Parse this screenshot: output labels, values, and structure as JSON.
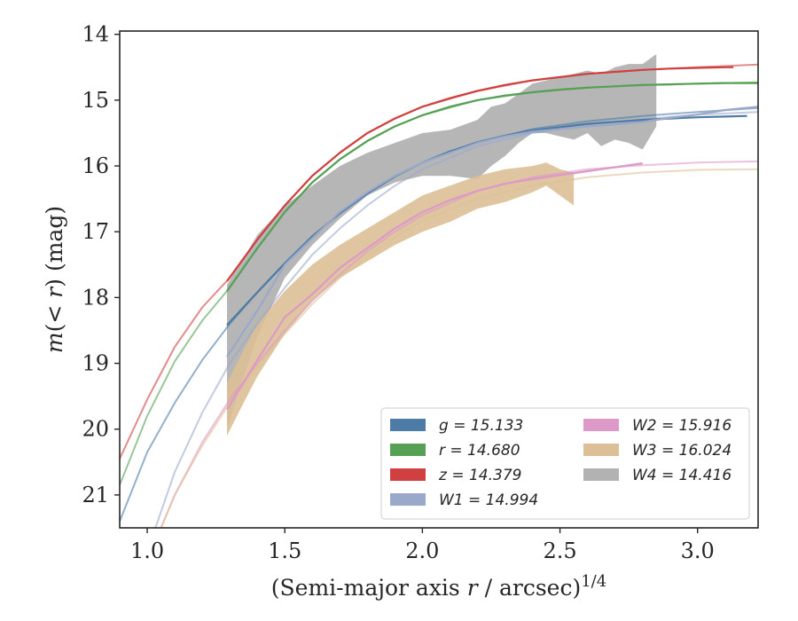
{
  "chart_data": {
    "type": "area",
    "xlabel": "(Semi-major axis r / arcsec)^1/4",
    "xlabel_parts": {
      "prefix": "(Semi-major axis ",
      "var": "r",
      "middle": " / arcsec)",
      "sup": "1/4"
    },
    "ylabel": "m(<r) (mag)",
    "ylabel_parts": {
      "var1": "m",
      "open": "(",
      "lt": "< ",
      "var2": "r",
      "close": ") (mag)"
    },
    "xlim": [
      0.9,
      3.22
    ],
    "ylim": [
      21.5,
      13.95
    ],
    "y_inverted": true,
    "x_ticks": [
      1.0,
      1.5,
      2.0,
      2.5,
      3.0
    ],
    "x_tick_labels": [
      "1.0",
      "1.5",
      "2.0",
      "2.5",
      "3.0"
    ],
    "y_ticks": [
      14,
      15,
      16,
      17,
      18,
      19,
      20,
      21
    ],
    "y_tick_labels": [
      "14",
      "15",
      "16",
      "17",
      "18",
      "19",
      "20",
      "21"
    ],
    "grid": false,
    "legend_position": "lower-right",
    "legend_columns": 2,
    "series": [
      {
        "name": "g",
        "label": "g = 15.133",
        "color": "#4c7ba6",
        "data": {
          "x": [
            1.29,
            1.4,
            1.5,
            1.6,
            1.7,
            1.8,
            1.9,
            2.0,
            2.1,
            2.2,
            2.3,
            2.4,
            2.5,
            2.6,
            2.7,
            2.8,
            2.9,
            3.0,
            3.1,
            3.18
          ],
          "y": [
            18.42,
            17.92,
            17.48,
            17.07,
            16.72,
            16.42,
            16.16,
            15.95,
            15.78,
            15.64,
            15.54,
            15.46,
            15.41,
            15.36,
            15.33,
            15.3,
            15.28,
            15.26,
            15.25,
            15.24
          ]
        },
        "model": {
          "x": [
            0.9,
            1.0,
            1.1,
            1.2,
            1.3,
            1.4,
            1.5,
            1.6,
            1.7,
            1.8,
            1.9,
            2.0,
            2.2,
            2.4,
            2.6,
            2.8,
            3.0,
            3.22
          ],
          "y": [
            21.4,
            20.35,
            19.6,
            18.95,
            18.4,
            17.92,
            17.48,
            17.07,
            16.72,
            16.42,
            16.16,
            15.95,
            15.64,
            15.44,
            15.32,
            15.24,
            15.18,
            15.12
          ]
        }
      },
      {
        "name": "r",
        "label": "r = 14.680",
        "color": "#55a055",
        "data": {
          "x": [
            1.29,
            1.4,
            1.5,
            1.6,
            1.7,
            1.8,
            1.9,
            2.0,
            2.1,
            2.2,
            2.3,
            2.4,
            2.5,
            2.6,
            2.7,
            2.8,
            2.9,
            3.0,
            3.1,
            3.22
          ],
          "y": [
            17.9,
            17.25,
            16.7,
            16.25,
            15.9,
            15.62,
            15.4,
            15.23,
            15.1,
            15.0,
            14.93,
            14.88,
            14.84,
            14.81,
            14.79,
            14.77,
            14.76,
            14.75,
            14.74,
            14.74
          ]
        },
        "model": {
          "x": [
            0.9,
            1.0,
            1.1,
            1.2,
            1.3,
            1.4,
            1.5,
            1.6,
            1.7,
            1.8,
            1.9,
            2.0,
            2.2,
            2.4,
            2.6,
            2.8,
            3.0,
            3.22
          ],
          "y": [
            20.85,
            19.8,
            18.97,
            18.35,
            17.85,
            17.25,
            16.7,
            16.25,
            15.9,
            15.62,
            15.4,
            15.23,
            15.0,
            14.88,
            14.81,
            14.77,
            14.75,
            14.73
          ]
        }
      },
      {
        "name": "z",
        "label": "z = 14.379",
        "color": "#d04040",
        "data": {
          "x": [
            1.29,
            1.4,
            1.5,
            1.6,
            1.7,
            1.8,
            1.9,
            2.0,
            2.1,
            2.2,
            2.3,
            2.4,
            2.5,
            2.6,
            2.7,
            2.8,
            2.9,
            3.0,
            3.1,
            3.13
          ],
          "y": [
            17.75,
            17.12,
            16.6,
            16.15,
            15.8,
            15.5,
            15.28,
            15.1,
            14.97,
            14.86,
            14.77,
            14.7,
            14.65,
            14.6,
            14.57,
            14.54,
            14.52,
            14.51,
            14.5,
            14.5
          ]
        },
        "model": {
          "x": [
            0.9,
            1.0,
            1.1,
            1.2,
            1.3,
            1.4,
            1.5,
            1.6,
            1.7,
            1.8,
            1.9,
            2.0,
            2.2,
            2.4,
            2.6,
            2.8,
            3.0,
            3.22
          ],
          "y": [
            20.45,
            19.55,
            18.75,
            18.15,
            17.7,
            17.12,
            16.6,
            16.15,
            15.8,
            15.5,
            15.28,
            15.1,
            14.86,
            14.7,
            14.6,
            14.54,
            14.5,
            14.46
          ]
        }
      },
      {
        "name": "W1",
        "label": "W1 = 14.994",
        "color": "#9aa8c9",
        "data": {
          "x": [
            1.29,
            1.4,
            1.5,
            1.6,
            1.7,
            1.8,
            1.9,
            2.0,
            2.1,
            2.2,
            2.3,
            2.4,
            2.5,
            2.6,
            2.7,
            2.8,
            2.9,
            3.0,
            3.1,
            3.22
          ],
          "y": [
            18.9,
            18.2,
            17.5,
            17.1,
            16.7,
            16.4,
            16.15,
            15.95,
            15.8,
            15.65,
            15.55,
            15.48,
            15.44,
            15.4,
            15.37,
            15.33,
            15.27,
            15.22,
            15.15,
            15.1
          ]
        },
        "model": {
          "x": [
            1.03,
            1.1,
            1.2,
            1.3,
            1.4,
            1.5,
            1.6,
            1.7,
            1.8,
            1.9,
            2.0,
            2.2,
            2.4,
            2.6,
            2.8,
            3.0,
            3.22
          ],
          "y": [
            21.5,
            20.65,
            19.75,
            19.0,
            18.4,
            17.85,
            17.35,
            16.95,
            16.6,
            16.3,
            16.05,
            15.7,
            15.5,
            15.37,
            15.29,
            15.22,
            15.18
          ]
        }
      },
      {
        "name": "W2",
        "label": "W2 = 15.916",
        "color": "#dd99c7",
        "data": {
          "x": [
            1.29,
            1.4,
            1.5,
            1.6,
            1.7,
            1.8,
            1.9,
            2.0,
            2.1,
            2.2,
            2.3,
            2.4,
            2.5,
            2.6,
            2.7,
            2.8
          ],
          "y": [
            19.7,
            18.95,
            18.3,
            17.95,
            17.55,
            17.25,
            16.95,
            16.7,
            16.52,
            16.38,
            16.27,
            16.2,
            16.14,
            16.08,
            16.02,
            15.96
          ]
        },
        "model": {
          "x": [
            1.05,
            1.1,
            1.2,
            1.3,
            1.4,
            1.5,
            1.6,
            1.7,
            1.8,
            1.9,
            2.0,
            2.2,
            2.4,
            2.6,
            2.8,
            3.0,
            3.22
          ],
          "y": [
            21.5,
            21.0,
            20.2,
            19.55,
            19.0,
            18.5,
            18.05,
            17.65,
            17.3,
            17.0,
            16.75,
            16.38,
            16.17,
            16.05,
            15.99,
            15.95,
            15.93
          ]
        }
      },
      {
        "name": "W3",
        "label": "W3 = 16.024",
        "color": "#dcbf96",
        "band": {
          "x": [
            1.29,
            1.35,
            1.4,
            1.5,
            1.6,
            1.7,
            1.8,
            1.9,
            2.0,
            2.1,
            2.2,
            2.3,
            2.4,
            2.45,
            2.5,
            2.55
          ],
          "y_low": [
            19.3,
            18.8,
            18.4,
            17.9,
            17.5,
            17.2,
            16.95,
            16.7,
            16.45,
            16.3,
            16.15,
            16.05,
            16.0,
            15.95,
            16.05,
            16.1
          ],
          "y_high": [
            20.1,
            19.6,
            19.2,
            18.55,
            18.05,
            17.7,
            17.45,
            17.2,
            17.0,
            16.85,
            16.65,
            16.55,
            16.4,
            16.3,
            16.45,
            16.6
          ]
        },
        "model": {
          "x": [
            1.05,
            1.1,
            1.2,
            1.3,
            1.4,
            1.5,
            1.6,
            1.7,
            1.8,
            1.9,
            2.0,
            2.2,
            2.4,
            2.6,
            2.8,
            3.0,
            3.22
          ],
          "y": [
            21.5,
            21.0,
            20.25,
            19.6,
            19.05,
            18.55,
            18.1,
            17.7,
            17.38,
            17.08,
            16.83,
            16.5,
            16.3,
            16.17,
            16.1,
            16.06,
            16.05
          ]
        }
      },
      {
        "name": "W4",
        "label": "W4 = 14.416",
        "color": "#b2b2b2",
        "band": {
          "x": [
            1.29,
            1.35,
            1.4,
            1.5,
            1.6,
            1.7,
            1.8,
            1.9,
            2.0,
            2.1,
            2.2,
            2.25,
            2.3,
            2.35,
            2.4,
            2.45,
            2.5,
            2.55,
            2.6,
            2.65,
            2.7,
            2.75,
            2.8,
            2.85
          ],
          "y_low": [
            17.8,
            17.4,
            17.05,
            16.6,
            16.3,
            16.0,
            15.8,
            15.65,
            15.5,
            15.45,
            15.3,
            15.1,
            15.05,
            14.9,
            14.75,
            14.7,
            14.65,
            14.6,
            14.55,
            14.6,
            14.5,
            14.45,
            14.45,
            14.3
          ],
          "y_high": [
            20.0,
            19.2,
            18.6,
            17.7,
            17.2,
            16.8,
            16.45,
            16.25,
            16.15,
            16.15,
            16.2,
            16.0,
            15.85,
            15.65,
            15.5,
            15.5,
            15.55,
            15.6,
            15.5,
            15.7,
            15.6,
            15.65,
            15.75,
            15.4
          ]
        },
        "model": null
      }
    ]
  }
}
